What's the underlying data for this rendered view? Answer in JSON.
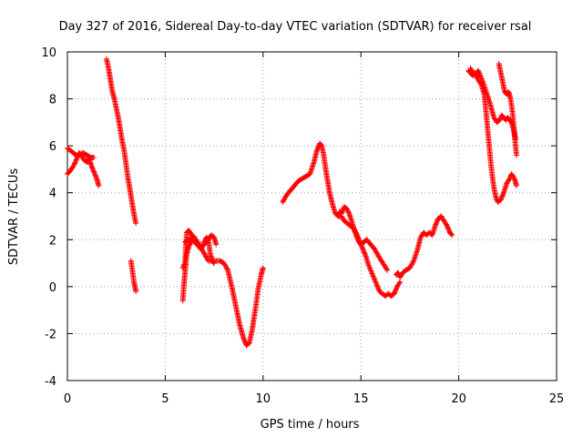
{
  "chart_data": {
    "type": "scatter",
    "title": "Day 327 of 2016, Sidereal Day-to-day VTEC variation (SDTVAR) for receiver rsal",
    "xlabel": "GPS time / hours",
    "ylabel": "SDTVAR / TECUs",
    "xlim": [
      0,
      25
    ],
    "ylim": [
      -4,
      10
    ],
    "xticks": [
      "0",
      "5",
      "10",
      "15",
      "20",
      "25"
    ],
    "yticks": [
      "-4",
      "-2",
      "0",
      "2",
      "4",
      "6",
      "8",
      "10"
    ],
    "grid": true,
    "marker": "+",
    "series": [
      {
        "name": "segment-1",
        "color": "#ff0000",
        "x": [
          0.0,
          0.1,
          0.2,
          0.35,
          0.5,
          0.6,
          0.7,
          0.85,
          1.0,
          1.1,
          1.2,
          1.35,
          1.5,
          1.6
        ],
        "y": [
          4.8,
          4.9,
          5.0,
          5.2,
          5.5,
          5.7,
          5.6,
          5.4,
          5.3,
          5.5,
          5.2,
          4.9,
          4.6,
          4.3
        ]
      },
      {
        "name": "segment-2",
        "color": "#ff0000",
        "x": [
          0.0,
          0.15,
          0.3,
          0.45,
          0.6,
          0.8,
          1.0,
          1.2,
          1.35
        ],
        "y": [
          5.9,
          5.8,
          5.7,
          5.6,
          5.6,
          5.7,
          5.6,
          5.5,
          5.5
        ]
      },
      {
        "name": "segment-3",
        "color": "#ff0000",
        "x": [
          2.0,
          2.1,
          2.2,
          2.3,
          2.4,
          2.5,
          2.6,
          2.7,
          2.8,
          2.9,
          3.0,
          3.1,
          3.2,
          3.3,
          3.4,
          3.5
        ],
        "y": [
          9.7,
          9.3,
          8.8,
          8.3,
          8.0,
          7.6,
          7.2,
          6.7,
          6.2,
          5.8,
          5.2,
          4.6,
          4.1,
          3.6,
          3.1,
          2.7
        ]
      },
      {
        "name": "segment-4",
        "color": "#ff0000",
        "x": [
          3.25,
          3.3,
          3.35,
          3.4,
          3.45,
          3.5
        ],
        "y": [
          1.1,
          0.8,
          0.5,
          0.2,
          0.0,
          -0.2
        ]
      },
      {
        "name": "segment-5",
        "color": "#ff0000",
        "x": [
          5.9,
          5.95,
          6.0,
          6.05,
          6.1,
          6.2,
          6.3,
          6.4,
          6.5,
          6.6,
          6.7
        ],
        "y": [
          -0.6,
          0.0,
          0.5,
          1.0,
          1.4,
          1.7,
          1.9,
          2.0,
          1.9,
          1.8,
          1.9
        ]
      },
      {
        "name": "segment-6",
        "color": "#ff0000",
        "x": [
          5.9,
          6.0,
          6.1,
          6.2,
          6.35,
          6.5,
          6.65,
          6.8,
          6.9,
          7.0,
          7.1,
          7.2,
          7.3,
          7.4,
          7.5
        ],
        "y": [
          0.8,
          1.0,
          2.3,
          2.4,
          2.2,
          2.1,
          1.8,
          1.6,
          1.7,
          1.9,
          2.1,
          2.0,
          1.4,
          1.1,
          1.0
        ]
      },
      {
        "name": "segment-7",
        "color": "#ff0000",
        "x": [
          6.0,
          6.2,
          6.4,
          6.6,
          6.8,
          7.0,
          7.2,
          7.4,
          7.6,
          7.8,
          8.0,
          8.2,
          8.4,
          8.6,
          8.8,
          9.0,
          9.15,
          9.3,
          9.45,
          9.6,
          9.75,
          9.9,
          10.0
        ],
        "y": [
          1.9,
          2.0,
          2.1,
          1.9,
          1.7,
          1.4,
          1.1,
          1.1,
          1.1,
          1.1,
          1.0,
          0.7,
          0.0,
          -0.8,
          -1.6,
          -2.2,
          -2.5,
          -2.4,
          -1.8,
          -1.0,
          -0.1,
          0.5,
          0.8
        ]
      },
      {
        "name": "segment-8",
        "color": "#ff0000",
        "x": [
          7.0,
          7.2,
          7.35,
          7.5,
          7.6
        ],
        "y": [
          1.8,
          2.0,
          2.2,
          2.1,
          1.8
        ]
      },
      {
        "name": "segment-9",
        "color": "#ff0000",
        "x": [
          11.0,
          11.2,
          11.4,
          11.6,
          11.8,
          12.0,
          12.2,
          12.4,
          12.6,
          12.75,
          12.9,
          13.0,
          13.1,
          13.2,
          13.3,
          13.4,
          13.55,
          13.7,
          13.85,
          14.0,
          14.15,
          14.3,
          14.45,
          14.6,
          14.75,
          14.9,
          15.0,
          15.1,
          15.25,
          15.4,
          15.6,
          15.8,
          15.95,
          16.1,
          16.25,
          16.4,
          16.55,
          16.7,
          16.85,
          17.0
        ],
        "y": [
          3.6,
          3.9,
          4.1,
          4.3,
          4.5,
          4.6,
          4.7,
          4.8,
          5.3,
          5.8,
          6.1,
          6.0,
          5.6,
          5.0,
          4.5,
          4.0,
          3.5,
          3.1,
          3.0,
          3.0,
          2.8,
          2.7,
          2.6,
          2.5,
          2.3,
          2.0,
          1.8,
          1.6,
          1.3,
          0.9,
          0.5,
          0.1,
          -0.2,
          -0.3,
          -0.4,
          -0.3,
          -0.4,
          -0.3,
          0.0,
          0.2
        ]
      },
      {
        "name": "segment-10",
        "color": "#ff0000",
        "x": [
          13.9,
          14.0,
          14.15,
          14.3,
          14.45,
          14.6,
          14.75,
          14.9,
          15.0,
          15.15,
          15.3,
          15.5,
          15.7,
          15.9,
          16.05,
          16.2,
          16.35
        ],
        "y": [
          3.2,
          3.1,
          3.4,
          3.3,
          3.0,
          2.6,
          2.2,
          1.9,
          1.8,
          1.9,
          2.0,
          1.8,
          1.6,
          1.3,
          1.1,
          0.9,
          0.7
        ]
      },
      {
        "name": "segment-11",
        "color": "#ff0000",
        "x": [
          16.8,
          16.9,
          17.0,
          17.15,
          17.3,
          17.5,
          17.7,
          17.9,
          18.05,
          18.2,
          18.35,
          18.5,
          18.65,
          18.8,
          18.95,
          19.1,
          19.25,
          19.4,
          19.55,
          19.65
        ],
        "y": [
          0.5,
          0.6,
          0.4,
          0.6,
          0.7,
          0.8,
          1.1,
          1.6,
          2.1,
          2.3,
          2.2,
          2.3,
          2.2,
          2.6,
          2.9,
          3.0,
          2.8,
          2.6,
          2.3,
          2.2
        ]
      },
      {
        "name": "segment-12",
        "color": "#ff0000",
        "x": [
          20.5,
          20.6,
          20.7,
          20.85,
          21.0,
          21.15,
          21.3,
          21.4,
          21.5,
          21.6,
          21.7,
          21.8,
          21.9,
          22.0,
          22.15,
          22.3,
          22.45,
          22.6,
          22.7,
          22.85,
          22.95
        ],
        "y": [
          9.2,
          9.1,
          9.0,
          9.1,
          8.8,
          8.6,
          8.2,
          7.4,
          6.5,
          5.6,
          4.8,
          4.2,
          3.8,
          3.6,
          3.7,
          4.0,
          4.4,
          4.6,
          4.8,
          4.6,
          4.3
        ]
      },
      {
        "name": "segment-13",
        "color": "#ff0000",
        "x": [
          20.6,
          20.8,
          21.0,
          21.2,
          21.4,
          21.6,
          21.8,
          21.95,
          22.1,
          22.2,
          22.3,
          22.4,
          22.5,
          22.6,
          22.7,
          22.8,
          22.9
        ],
        "y": [
          9.3,
          9.0,
          9.2,
          8.8,
          8.3,
          7.8,
          7.2,
          7.0,
          7.1,
          7.3,
          7.2,
          7.1,
          7.2,
          7.1,
          7.0,
          6.7,
          6.3
        ]
      },
      {
        "name": "segment-14",
        "color": "#ff0000",
        "x": [
          22.05,
          22.15,
          22.25,
          22.35,
          22.45,
          22.55,
          22.65,
          22.75,
          22.85,
          22.95
        ],
        "y": [
          9.5,
          9.1,
          8.7,
          8.3,
          8.2,
          8.3,
          8.0,
          7.4,
          6.5,
          5.6
        ]
      }
    ]
  }
}
